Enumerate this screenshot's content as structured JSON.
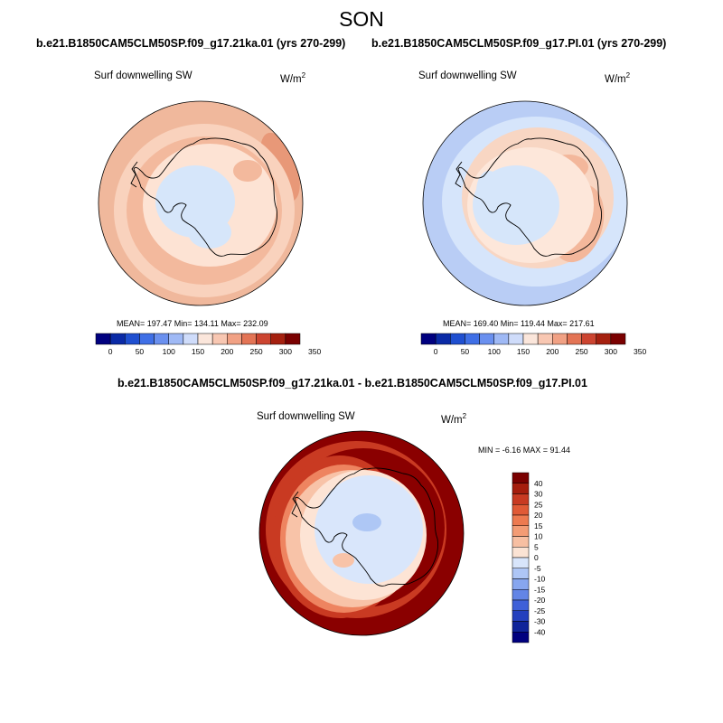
{
  "figure": {
    "season": "SON",
    "variable": "Surf downwelling SW",
    "units_base": "W/m",
    "units_exp": "2"
  },
  "panels": {
    "case1": {
      "title": "b.e21.B1850CAM5CLM50SP.f09_g17.21ka.01 (yrs 270-299)",
      "stats_text": "MEAN= 197.47  Min= 134.11  Max= 232.09",
      "mean": 197.47,
      "min": 134.11,
      "max": 232.09
    },
    "case2": {
      "title": "b.e21.B1850CAM5CLM50SP.f09_g17.PI.01 (yrs 270-299)",
      "stats_text": "MEAN= 169.40  Min= 119.44  Max= 217.61",
      "mean": 169.4,
      "min": 119.44,
      "max": 217.61
    },
    "diff": {
      "title": "b.e21.B1850CAM5CLM50SP.f09_g17.21ka.01 - b.e21.B1850CAM5CLM50SP.f09_g17.PI.01",
      "stats_text": "MIN =  -6.16 MAX =  91.44",
      "min": -6.16,
      "max": 91.44
    }
  },
  "colorbars": {
    "abs": {
      "labels": [
        "0",
        "50",
        "100",
        "150",
        "200",
        "250",
        "300",
        "350"
      ],
      "colors": [
        "#00007f",
        "#0a2aa6",
        "#1f4fd0",
        "#3f6fe6",
        "#6a90ef",
        "#9fb9f5",
        "#cfdcfa",
        "#fbe6db",
        "#f8c7b2",
        "#f1a184",
        "#e37455",
        "#cc4430",
        "#a5200f",
        "#7a0000"
      ]
    },
    "diff": {
      "labels": [
        "40",
        "30",
        "25",
        "20",
        "15",
        "10",
        "5",
        "0",
        "-5",
        "-10",
        "-15",
        "-20",
        "-25",
        "-30",
        "-40"
      ],
      "colors": [
        "#7a0000",
        "#a51d0d",
        "#c83a22",
        "#e05a36",
        "#ed7a50",
        "#f39c75",
        "#f7bfa2",
        "#fbe3d4",
        "#d8e5fb",
        "#aec6f6",
        "#87a6ef",
        "#6385e6",
        "#3f60d8",
        "#2440be",
        "#0f249a",
        "#00007f"
      ]
    }
  },
  "map_colors": {
    "c1_outer": "#f0b89c",
    "c1_ring": "#f9d2bd",
    "c1_band": "#f3b99d",
    "c1_inner": "#fde3d4",
    "c1_ice": "#d6e6fa",
    "c1_hot": "#e89878",
    "c2_outer": "#b9cdf5",
    "c2_ring": "#d6e5fb",
    "c2_band": "#f8d6c3",
    "c2_inner": "#fde7da",
    "c2_ice": "#d6e6fa",
    "c2_hot": "#f3b79b",
    "d_outer": "#8a0000",
    "d_ring1": "#c93a22",
    "d_ring2": "#ee8460",
    "d_ring3": "#f8c3a8",
    "d_ring4": "#fde4d5",
    "d_ice": "#d9e6fb",
    "d_neg": "#aec7f5",
    "coast": "#000000"
  }
}
